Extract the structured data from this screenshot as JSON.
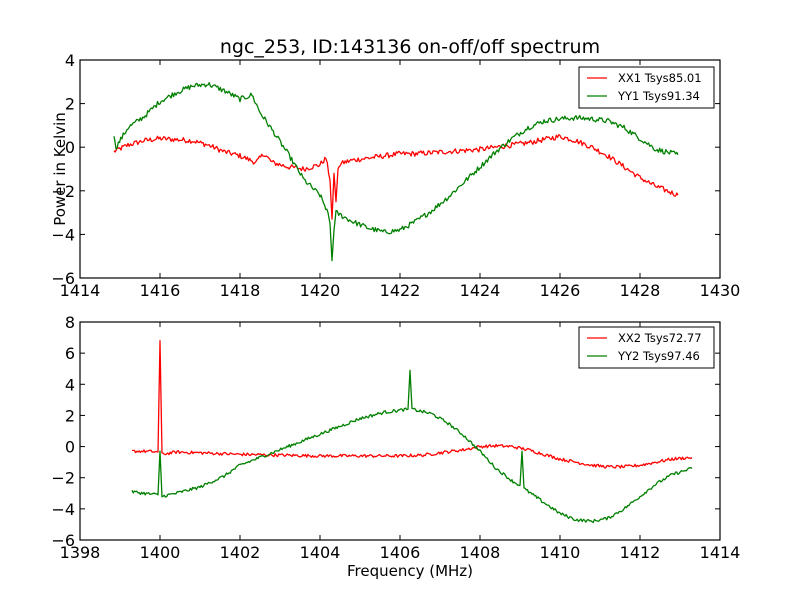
{
  "chart_data": [
    {
      "type": "line",
      "title": "ngc_253, ID:143136 on-off/off spectrum",
      "xlabel": "",
      "ylabel": "Power in Kelvin",
      "xlim": [
        1414,
        1430
      ],
      "ylim": [
        -6,
        4
      ],
      "xticks": [
        "1414",
        "1416",
        "1418",
        "1420",
        "1422",
        "1424",
        "1426",
        "1428",
        "1430"
      ],
      "yticks": [
        "4",
        "2",
        "0",
        "−2",
        "−4",
        "−6"
      ],
      "xtick_values": [
        1414,
        1416,
        1418,
        1420,
        1422,
        1424,
        1426,
        1428,
        1430
      ],
      "ytick_values": [
        4,
        2,
        0,
        -2,
        -4,
        -6
      ],
      "legend_position": "top-right",
      "grid": false,
      "series": [
        {
          "name": "XX1 Tsys85.01",
          "color": "#ff0000",
          "noise": 0.12,
          "x": [
            1414.85,
            1415.2,
            1415.6,
            1416.0,
            1416.4,
            1416.8,
            1417.2,
            1417.6,
            1418.0,
            1418.4,
            1418.6,
            1418.8,
            1419.2,
            1419.6,
            1420.0,
            1420.15,
            1420.25,
            1420.3,
            1420.35,
            1420.4,
            1420.45,
            1420.5,
            1420.6,
            1420.8,
            1421.2,
            1421.6,
            1422.0,
            1422.4,
            1422.8,
            1423.2,
            1423.6,
            1424.0,
            1424.4,
            1424.8,
            1425.2,
            1425.6,
            1426.0,
            1426.4,
            1426.8,
            1427.2,
            1427.6,
            1428.0,
            1428.4,
            1428.95
          ],
          "y": [
            -0.2,
            0.1,
            0.3,
            0.4,
            0.35,
            0.3,
            0.1,
            -0.2,
            -0.4,
            -0.7,
            -0.3,
            -0.7,
            -0.9,
            -1.0,
            -0.8,
            -0.5,
            -1.5,
            -3.3,
            -1.2,
            -2.5,
            -1.0,
            -0.8,
            -0.7,
            -0.6,
            -0.5,
            -0.4,
            -0.3,
            -0.3,
            -0.25,
            -0.2,
            -0.15,
            -0.1,
            0.0,
            0.1,
            0.2,
            0.35,
            0.5,
            0.3,
            0.0,
            -0.4,
            -0.9,
            -1.4,
            -1.8,
            -2.2
          ]
        },
        {
          "name": "YY1 Tsys91.34",
          "color": "#008000",
          "noise": 0.12,
          "x": [
            1414.85,
            1414.9,
            1415.2,
            1415.6,
            1416.0,
            1416.4,
            1416.8,
            1417.2,
            1417.6,
            1418.0,
            1418.3,
            1418.5,
            1418.8,
            1419.2,
            1419.6,
            1420.0,
            1420.2,
            1420.25,
            1420.3,
            1420.35,
            1420.4,
            1420.5,
            1420.8,
            1421.2,
            1421.6,
            1422.0,
            1422.4,
            1422.8,
            1423.2,
            1423.6,
            1424.0,
            1424.4,
            1424.8,
            1425.2,
            1425.6,
            1426.0,
            1426.4,
            1426.8,
            1427.2,
            1427.6,
            1428.0,
            1428.4,
            1428.95
          ],
          "y": [
            0.5,
            0.0,
            0.9,
            1.4,
            2.1,
            2.5,
            2.8,
            2.9,
            2.6,
            2.2,
            2.4,
            1.6,
            0.8,
            -0.3,
            -1.5,
            -2.2,
            -3.0,
            -3.5,
            -5.2,
            -3.8,
            -3.0,
            -3.1,
            -3.4,
            -3.7,
            -3.9,
            -3.8,
            -3.4,
            -2.9,
            -2.3,
            -1.6,
            -0.9,
            -0.2,
            0.4,
            0.9,
            1.2,
            1.3,
            1.35,
            1.3,
            1.2,
            0.9,
            0.4,
            -0.1,
            -0.35
          ]
        }
      ]
    },
    {
      "type": "line",
      "title": "",
      "xlabel": "Frequency (MHz)",
      "ylabel": "",
      "xlim": [
        1398,
        1414
      ],
      "ylim": [
        -6,
        8
      ],
      "xticks": [
        "1398",
        "1400",
        "1402",
        "1404",
        "1406",
        "1408",
        "1410",
        "1412",
        "1414"
      ],
      "yticks": [
        "8",
        "6",
        "4",
        "2",
        "0",
        "−2",
        "−4",
        "−6"
      ],
      "xtick_values": [
        1398,
        1400,
        1402,
        1404,
        1406,
        1408,
        1410,
        1412,
        1414
      ],
      "ytick_values": [
        8,
        6,
        4,
        2,
        0,
        -2,
        -4,
        -6
      ],
      "legend_position": "top-right",
      "grid": false,
      "series": [
        {
          "name": "XX2 Tsys72.77",
          "color": "#ff0000",
          "noise": 0.1,
          "x": [
            1399.3,
            1399.6,
            1399.95,
            1400.0,
            1400.05,
            1400.4,
            1401.0,
            1402.0,
            1403.0,
            1404.0,
            1405.0,
            1406.0,
            1406.6,
            1407.0,
            1407.6,
            1408.0,
            1408.4,
            1408.8,
            1409.2,
            1409.6,
            1410.0,
            1410.4,
            1410.8,
            1411.2,
            1411.6,
            1412.0,
            1412.4,
            1412.8,
            1413.3
          ],
          "y": [
            -0.3,
            -0.3,
            -0.35,
            6.8,
            -0.5,
            -0.35,
            -0.4,
            -0.5,
            -0.55,
            -0.6,
            -0.6,
            -0.6,
            -0.55,
            -0.4,
            -0.2,
            0.0,
            0.05,
            0.0,
            -0.2,
            -0.5,
            -0.8,
            -1.0,
            -1.2,
            -1.3,
            -1.3,
            -1.2,
            -1.0,
            -0.8,
            -0.7
          ]
        },
        {
          "name": "YY2 Tsys97.46",
          "color": "#008000",
          "noise": 0.1,
          "x": [
            1399.3,
            1399.6,
            1399.95,
            1400.0,
            1400.05,
            1400.4,
            1401.0,
            1401.6,
            1402.0,
            1402.6,
            1403.2,
            1403.8,
            1404.4,
            1405.0,
            1405.6,
            1406.2,
            1406.25,
            1406.3,
            1406.8,
            1407.2,
            1407.6,
            1408.0,
            1408.4,
            1408.8,
            1409.0,
            1409.05,
            1409.1,
            1409.6,
            1410.0,
            1410.4,
            1410.8,
            1411.2,
            1411.6,
            1412.0,
            1412.4,
            1412.8,
            1413.3
          ],
          "y": [
            -2.9,
            -3.0,
            -3.1,
            -0.3,
            -3.2,
            -3.0,
            -2.6,
            -1.9,
            -1.2,
            -0.6,
            0.0,
            0.6,
            1.2,
            1.8,
            2.2,
            2.4,
            4.9,
            2.4,
            2.1,
            1.5,
            0.7,
            -0.3,
            -1.4,
            -2.2,
            -2.5,
            -0.3,
            -2.7,
            -3.6,
            -4.3,
            -4.7,
            -4.8,
            -4.6,
            -4.0,
            -3.2,
            -2.4,
            -1.8,
            -1.4
          ]
        }
      ]
    }
  ]
}
